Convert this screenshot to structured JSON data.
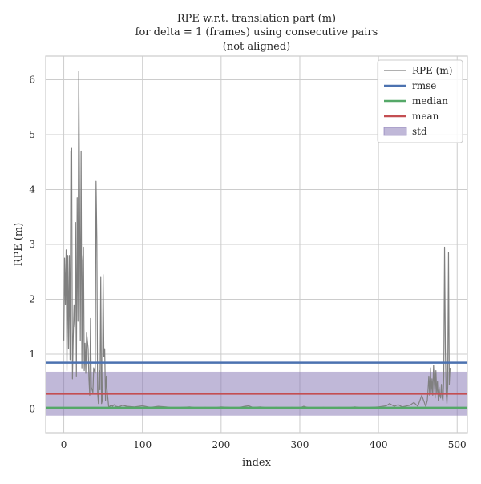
{
  "chart_data": {
    "type": "line",
    "title": [
      "RPE w.r.t. translation part (m)",
      "for delta = 1 (frames) using consecutive pairs",
      "(not aligned)"
    ],
    "xlabel": "index",
    "ylabel": "RPE (m)",
    "xlim": [
      -23,
      513
    ],
    "ylim": [
      -0.43,
      6.43
    ],
    "xticks": [
      0,
      100,
      200,
      300,
      400,
      500
    ],
    "yticks": [
      0,
      1,
      2,
      3,
      4,
      5,
      6
    ],
    "grid": true,
    "legend_position": "top-right",
    "colors": {
      "rpe": "#808080",
      "rmse": "#4c72b0",
      "median": "#55a868",
      "mean": "#c44e52",
      "std": "#8172b2"
    },
    "series": [
      {
        "name": "RPE (m)",
        "kind": "line",
        "x": [
          0,
          1,
          2,
          3,
          4,
          5,
          6,
          7,
          8,
          9,
          10,
          11,
          12,
          13,
          14,
          15,
          16,
          17,
          18,
          19,
          20,
          21,
          22,
          23,
          24,
          25,
          26,
          27,
          28,
          29,
          30,
          31,
          32,
          33,
          34,
          35,
          36,
          37,
          38,
          39,
          40,
          41,
          42,
          43,
          44,
          45,
          46,
          47,
          48,
          49,
          50,
          51,
          52,
          53,
          54,
          55,
          56,
          57,
          58,
          59,
          60,
          61,
          62,
          64,
          66,
          70,
          75,
          80,
          90,
          100,
          110,
          120,
          130,
          140,
          150,
          160,
          170,
          180,
          190,
          200,
          210,
          220,
          230,
          235,
          240,
          250,
          260,
          270,
          280,
          290,
          300,
          305,
          310,
          320,
          330,
          340,
          350,
          360,
          370,
          380,
          390,
          400,
          410,
          414,
          420,
          425,
          430,
          440,
          445,
          450,
          455,
          460,
          462,
          463,
          464,
          465,
          466,
          467,
          468,
          469,
          470,
          471,
          472,
          473,
          474,
          475,
          476,
          477,
          478,
          479,
          480,
          481,
          482,
          483,
          484,
          485,
          486,
          487,
          488,
          489,
          490,
          491
        ],
        "y": [
          1.25,
          2.75,
          1.9,
          2.9,
          0.7,
          2.8,
          1.1,
          2.8,
          0.9,
          4.7,
          4.75,
          0.55,
          1.3,
          1.9,
          1.5,
          3.4,
          0.6,
          3.85,
          1.6,
          6.15,
          3.9,
          1.25,
          4.7,
          0.75,
          2.7,
          2.95,
          0.7,
          1.2,
          0.65,
          1.4,
          1.25,
          1.1,
          0.55,
          0.25,
          1.65,
          0.4,
          0.35,
          0.3,
          0.75,
          0.7,
          0.65,
          4.15,
          3.1,
          0.3,
          0.1,
          0.7,
          0.35,
          2.4,
          0.1,
          0.15,
          2.45,
          0.95,
          1.1,
          0.15,
          0.6,
          0.35,
          0.2,
          0.05,
          0.04,
          0.06,
          0.05,
          0.07,
          0.05,
          0.08,
          0.05,
          0.04,
          0.07,
          0.05,
          0.04,
          0.06,
          0.03,
          0.05,
          0.04,
          0.02,
          0.03,
          0.04,
          0.02,
          0.03,
          0.02,
          0.04,
          0.03,
          0.02,
          0.05,
          0.06,
          0.03,
          0.04,
          0.02,
          0.03,
          0.02,
          0.03,
          0.02,
          0.05,
          0.03,
          0.02,
          0.03,
          0.02,
          0.03,
          0.02,
          0.04,
          0.02,
          0.03,
          0.04,
          0.06,
          0.1,
          0.05,
          0.08,
          0.04,
          0.07,
          0.12,
          0.05,
          0.25,
          0.05,
          0.15,
          0.35,
          0.6,
          0.25,
          0.75,
          0.3,
          0.55,
          0.25,
          0.8,
          0.45,
          0.2,
          0.7,
          0.3,
          0.5,
          0.15,
          0.4,
          0.25,
          0.2,
          0.45,
          0.2,
          0.15,
          0.6,
          2.95,
          1.1,
          0.3,
          0.1,
          0.4,
          2.85,
          0.45,
          0.75
        ]
      },
      {
        "name": "rmse",
        "kind": "hline",
        "value": 0.845
      },
      {
        "name": "median",
        "kind": "hline",
        "value": 0.025
      },
      {
        "name": "mean",
        "kind": "hline",
        "value": 0.28
      },
      {
        "name": "std",
        "kind": "band",
        "range": [
          -0.12,
          0.68
        ]
      }
    ]
  }
}
